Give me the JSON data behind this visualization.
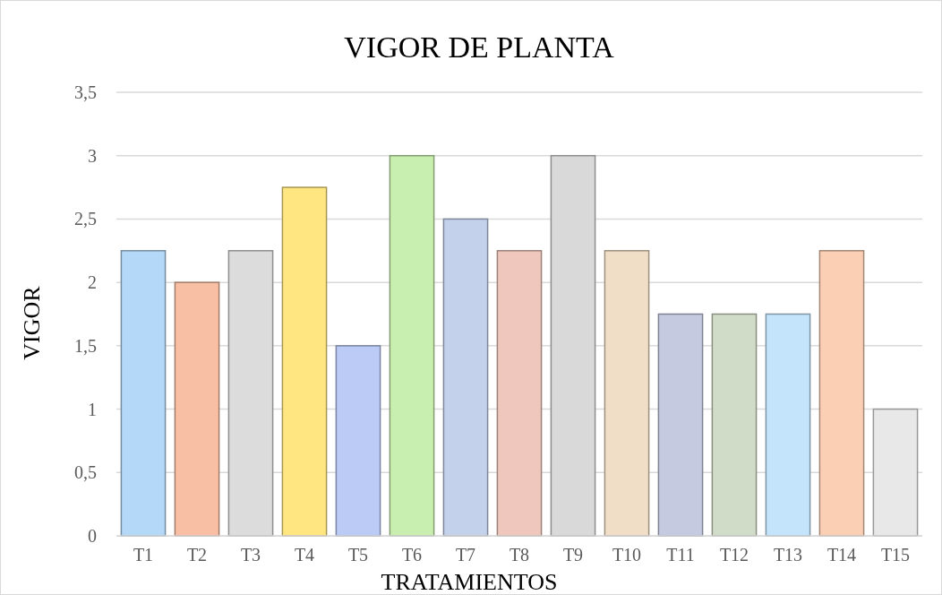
{
  "chart_data": {
    "type": "bar",
    "title": "VIGOR DE PLANTA",
    "xlabel": "TRATAMIENTOS",
    "ylabel": "VIGOR",
    "categories": [
      "T1",
      "T2",
      "T3",
      "T4",
      "T5",
      "T6",
      "T7",
      "T8",
      "T9",
      "T10",
      "T11",
      "T12",
      "T13",
      "T14",
      "T15"
    ],
    "values": [
      2.25,
      2,
      2.25,
      2.75,
      1.5,
      3,
      2.5,
      2.25,
      3,
      2.25,
      1.75,
      1.75,
      1.75,
      2.25,
      1
    ],
    "colors": [
      "#b4d8f7",
      "#f9bfa4",
      "#dcdcdc",
      "#ffe680",
      "#bccbf5",
      "#c9efb0",
      "#c3d1ea",
      "#f0c7bc",
      "#d9d9d9",
      "#f0dfc6",
      "#c5cae0",
      "#d1dcc8",
      "#c3e4fb",
      "#fbcfb3",
      "#e8e8e8"
    ],
    "ylim": [
      0,
      3.5
    ],
    "yticks": [
      {
        "value": 0,
        "label": "0"
      },
      {
        "value": 0.5,
        "label": "0,5"
      },
      {
        "value": 1,
        "label": "1"
      },
      {
        "value": 1.5,
        "label": "1,5"
      },
      {
        "value": 2,
        "label": "2"
      },
      {
        "value": 2.5,
        "label": "2,5"
      },
      {
        "value": 3,
        "label": "3"
      },
      {
        "value": 3.5,
        "label": "3,5"
      }
    ],
    "grid": "y"
  }
}
